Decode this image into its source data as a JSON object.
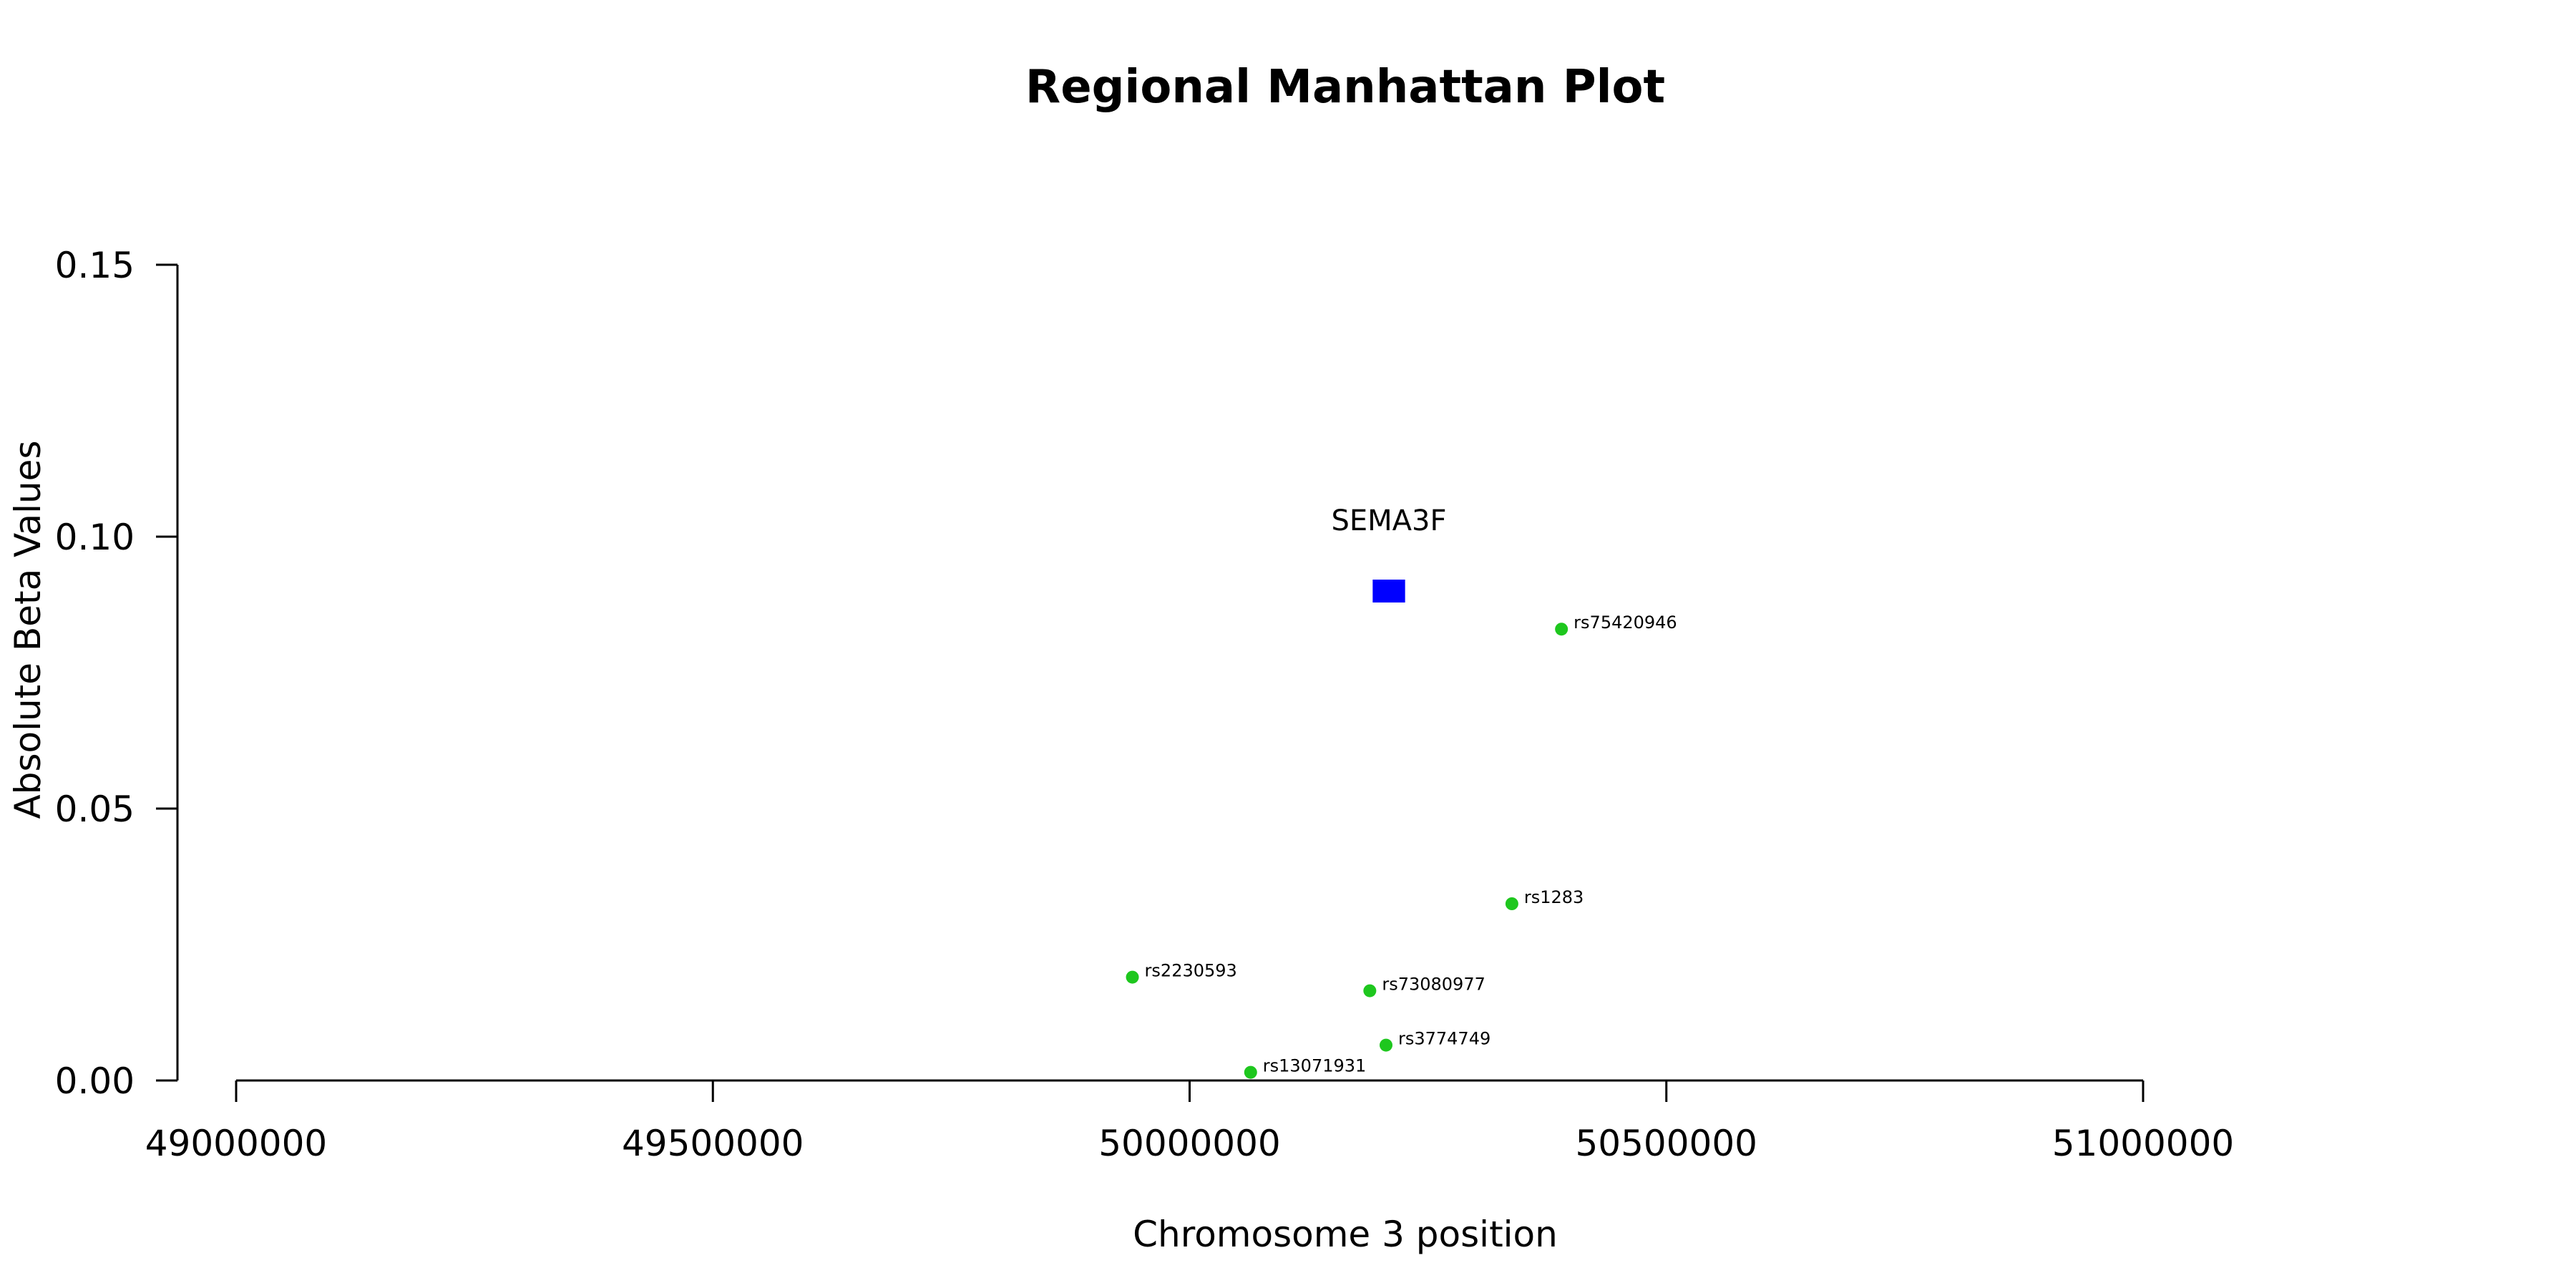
{
  "chart_data": {
    "type": "scatter",
    "title": "Regional Manhattan Plot",
    "xlabel": "Chromosome 3 position",
    "ylabel": "Absolute Beta Values",
    "xlim": [
      49000000,
      51000000
    ],
    "ylim": [
      0,
      0.15
    ],
    "x_ticks": [
      49000000,
      49500000,
      50000000,
      50500000,
      51000000
    ],
    "x_tick_labels": [
      "49000000",
      "49500000",
      "50000000",
      "50500000",
      "51000000"
    ],
    "y_ticks": [
      0,
      0.05,
      0.1,
      0.15
    ],
    "y_tick_labels": [
      "0.00",
      "0.05",
      "0.10",
      "0.15"
    ],
    "grid": false,
    "point_color": "#1ec71e",
    "points": [
      {
        "label": "rs75420946",
        "x": 50390000,
        "y": 0.083
      },
      {
        "label": "rs1283",
        "x": 50338000,
        "y": 0.0325
      },
      {
        "label": "rs2230593",
        "x": 49940000,
        "y": 0.019
      },
      {
        "label": "rs73080977",
        "x": 50189000,
        "y": 0.0165
      },
      {
        "label": "rs3774749",
        "x": 50206000,
        "y": 0.0065
      },
      {
        "label": "rs13071931",
        "x": 50064000,
        "y": 0.0015
      }
    ],
    "genes": [
      {
        "name": "SEMA3F",
        "start": 50192000,
        "end": 50226000,
        "y": 0.09,
        "color": "#0000ff"
      }
    ]
  }
}
